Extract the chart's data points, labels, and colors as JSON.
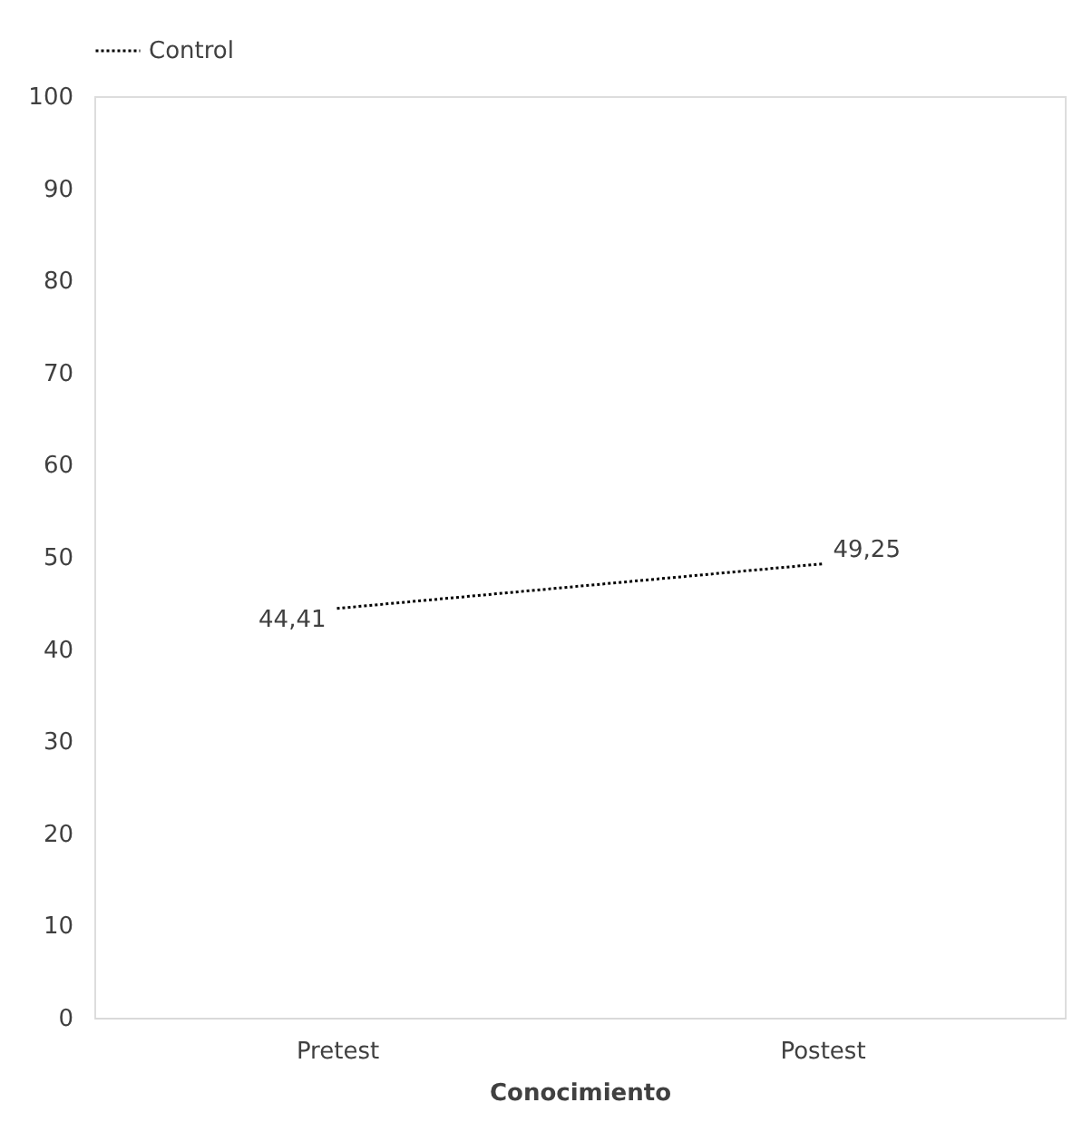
{
  "chart_data": {
    "type": "line",
    "xlabel": "Conocimiento",
    "categories": [
      "Pretest",
      "Postest"
    ],
    "series": [
      {
        "name": "Control",
        "color": "#000000",
        "values": [
          44.41,
          49.25
        ],
        "value_labels": [
          "44,41",
          "49,25"
        ],
        "line_style": "dotted"
      }
    ],
    "ylim": [
      0,
      100
    ],
    "yticks": [
      0,
      10,
      20,
      30,
      40,
      50,
      60,
      70,
      80,
      90,
      100
    ],
    "grid": false,
    "legend": "top",
    "marker": "none"
  }
}
